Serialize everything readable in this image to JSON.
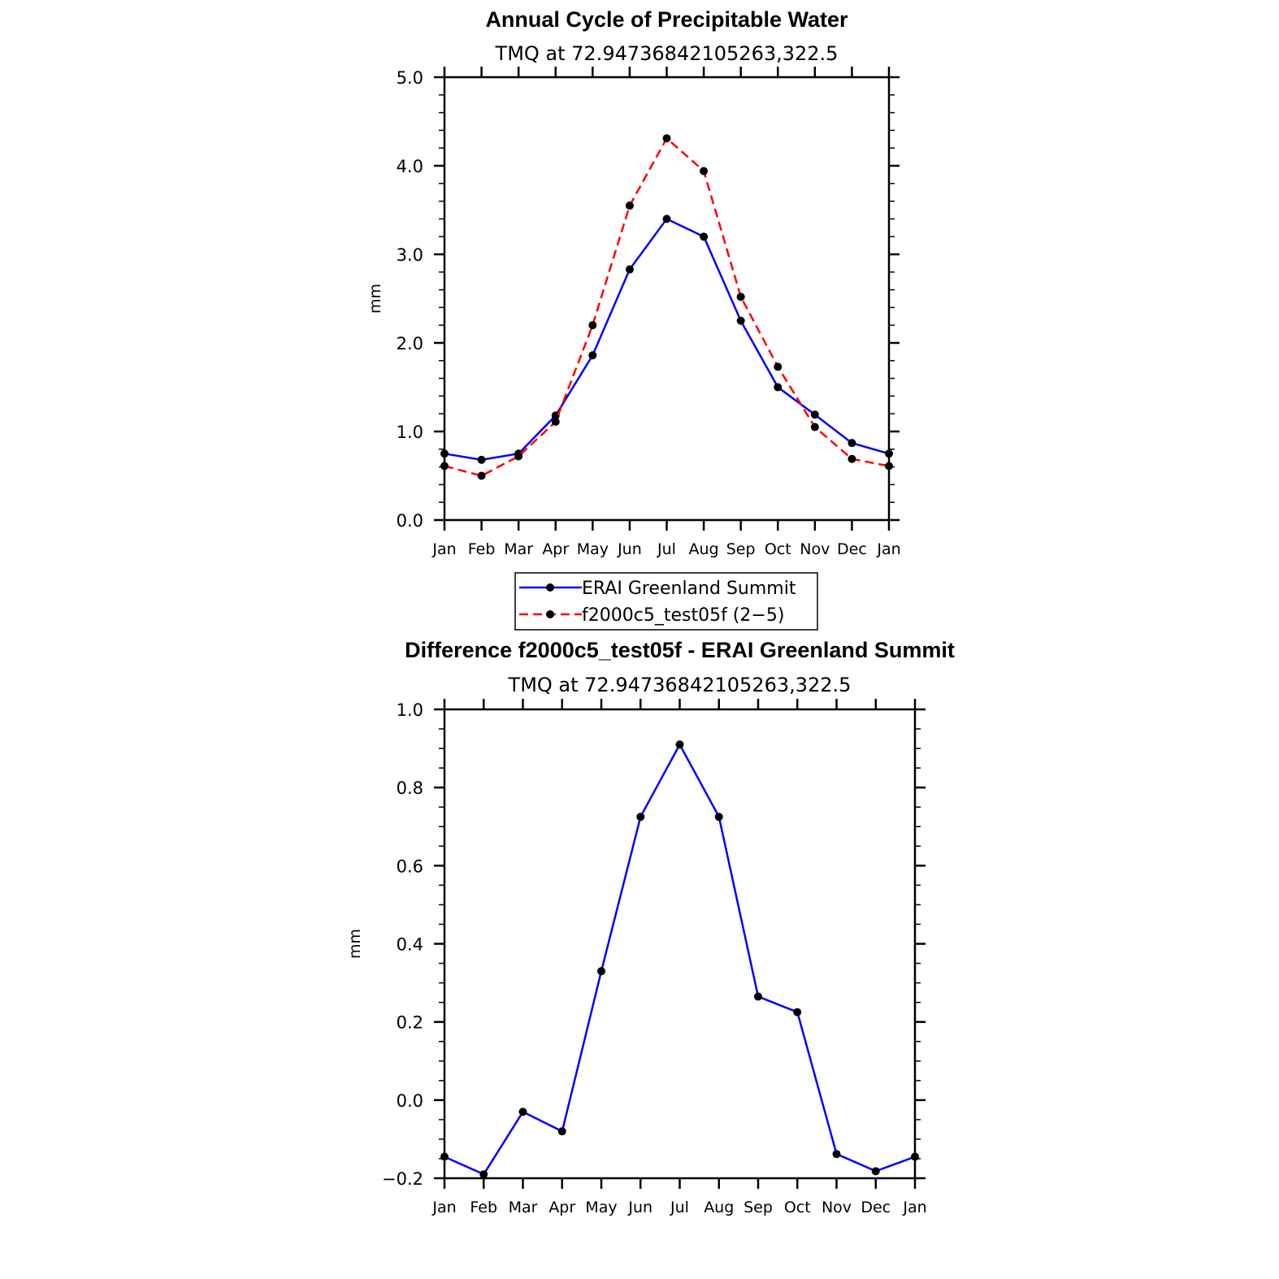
{
  "chart_data": [
    {
      "type": "line",
      "title": "Annual Cycle of Precipitable Water",
      "subtitle": "TMQ  at  72.94736842105263,322.5",
      "xlabel": "",
      "ylabel": "mm",
      "categories": [
        "Jan",
        "Feb",
        "Mar",
        "Apr",
        "May",
        "Jun",
        "Jul",
        "Aug",
        "Sep",
        "Oct",
        "Nov",
        "Dec",
        "Jan"
      ],
      "ylim": [
        0.0,
        5.0
      ],
      "yticks": [
        "0.0",
        "1.0",
        "2.0",
        "3.0",
        "4.0",
        "5.0"
      ],
      "grid": false,
      "legend_position": "bottom",
      "series": [
        {
          "name": "ERAI Greenland Summit",
          "color": "#0000ff",
          "dash": "solid",
          "values": [
            0.75,
            0.68,
            0.75,
            1.18,
            1.86,
            2.83,
            3.4,
            3.2,
            2.25,
            1.5,
            1.19,
            0.87,
            0.75
          ]
        },
        {
          "name": "f2000c5_test05f (2−5)",
          "color": "#ff0000",
          "dash": "dashed",
          "values": [
            0.61,
            0.5,
            0.72,
            1.11,
            2.2,
            3.55,
            4.31,
            3.94,
            2.52,
            1.73,
            1.05,
            0.69,
            0.61
          ]
        }
      ]
    },
    {
      "type": "line",
      "title": "Difference f2000c5_test05f - ERAI Greenland Summit",
      "subtitle": "TMQ  at  72.94736842105263,322.5",
      "xlabel": "",
      "ylabel": "mm",
      "categories": [
        "Jan",
        "Feb",
        "Mar",
        "Apr",
        "May",
        "Jun",
        "Jul",
        "Aug",
        "Sep",
        "Oct",
        "Nov",
        "Dec",
        "Jan"
      ],
      "ylim": [
        -0.2,
        1.0
      ],
      "yticks": [
        "−0.2",
        "0.0",
        "0.2",
        "0.4",
        "0.6",
        "0.8",
        "1.0"
      ],
      "grid": false,
      "series": [
        {
          "color": "#0000ff",
          "dash": "solid",
          "values": [
            -0.145,
            -0.19,
            -0.03,
            -0.08,
            0.33,
            0.725,
            0.91,
            0.725,
            0.265,
            0.225,
            -0.138,
            -0.182,
            -0.145
          ]
        }
      ]
    }
  ]
}
